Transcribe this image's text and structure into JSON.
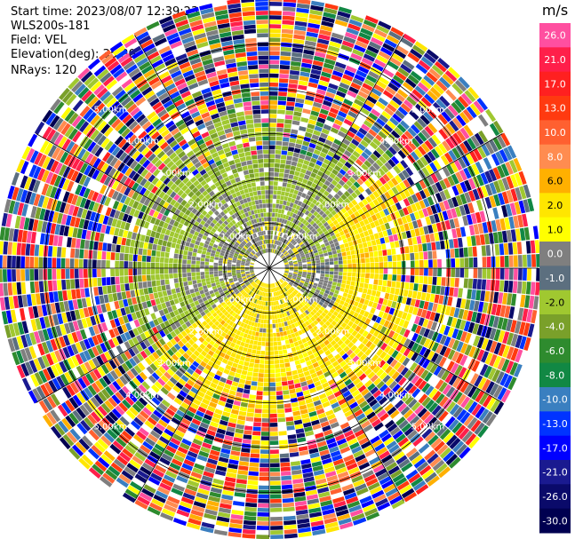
{
  "header": {
    "start_time": "Start time: 2023/08/07 12:39:23",
    "radar": "WLS200s-181",
    "field": "Field: VEL",
    "elevation": "Elevation(deg): 35.30",
    "nrays": "NRays: 120"
  },
  "chart_data": {
    "type": "heatmap",
    "projection": "polar-ppi",
    "field": "VEL",
    "units": "m/s",
    "n_rays": 120,
    "max_range_km": 6.0,
    "range_rings_km": [
      1,
      2,
      3,
      4,
      5
    ],
    "range_ring_labels": [
      "1.00km",
      "2.00km",
      "3.00km",
      "4.00km",
      "5.00km"
    ],
    "radial_lines_deg": [
      0,
      30,
      60,
      90,
      120,
      150,
      180,
      210,
      240,
      270,
      300,
      330
    ],
    "colorbar": {
      "unit_label": "m/s",
      "ticks": [
        "26.0",
        "21.0",
        "17.0",
        "13.0",
        "10.0",
        "8.0",
        "6.0",
        "2.0",
        "1.0",
        "0.0",
        "-1.0",
        "-2.0",
        "-4.0",
        "-6.0",
        "-8.0",
        "-10.0",
        "-13.0",
        "-17.0",
        "-21.0",
        "-26.0",
        "-30.0"
      ],
      "colors": [
        "#ff4fa0",
        "#ff1f4a",
        "#ff2020",
        "#ff3a10",
        "#ff6030",
        "#ff8c50",
        "#ffb000",
        "#ffe600",
        "#ffff00",
        "#7f7f7f",
        "#5c6f7f",
        "#a0c830",
        "#7aa02a",
        "#2e8b2e",
        "#118844",
        "#3a7fc0",
        "#0033ff",
        "#0000ff",
        "#1a1a90",
        "#0a0a6a",
        "#000050"
      ]
    },
    "pattern": {
      "inner_radius_km": 0.35,
      "clear_air_max_km": 3.0,
      "noise_start_km": 3.3,
      "toward_sector_center_deg": 180,
      "away_sector_center_deg": 0
    }
  }
}
